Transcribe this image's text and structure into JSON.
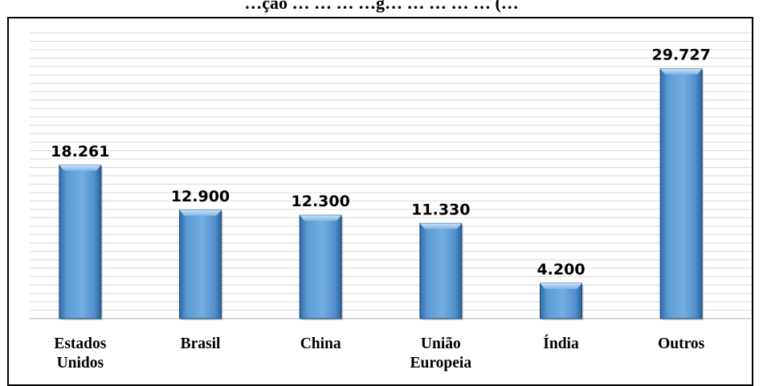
{
  "chart_data": {
    "type": "bar",
    "title": "…ção … … … …g… … … … … (…",
    "categories": [
      "Estados Unidos",
      "Brasil",
      "China",
      "União Europeia",
      "Índia",
      "Outros"
    ],
    "category_lines": [
      [
        "Estados",
        "Unidos"
      ],
      [
        "Brasil"
      ],
      [
        "China"
      ],
      [
        "União",
        "Europeia"
      ],
      [
        "Índia"
      ],
      [
        "Outros"
      ]
    ],
    "values": [
      18261,
      12900,
      12300,
      11330,
      4200,
      29727
    ],
    "value_labels": [
      "18.261",
      "12.900",
      "12.300",
      "11.330",
      "4.200",
      "29.727"
    ],
    "ylim": [
      0,
      34000
    ],
    "grid": true,
    "legend": "none",
    "colors": {
      "bar": "#5b9bd5",
      "bar_dark": "#2e6aa7",
      "bar_light": "#a9cdef",
      "grid": "#d9d9d9"
    }
  }
}
